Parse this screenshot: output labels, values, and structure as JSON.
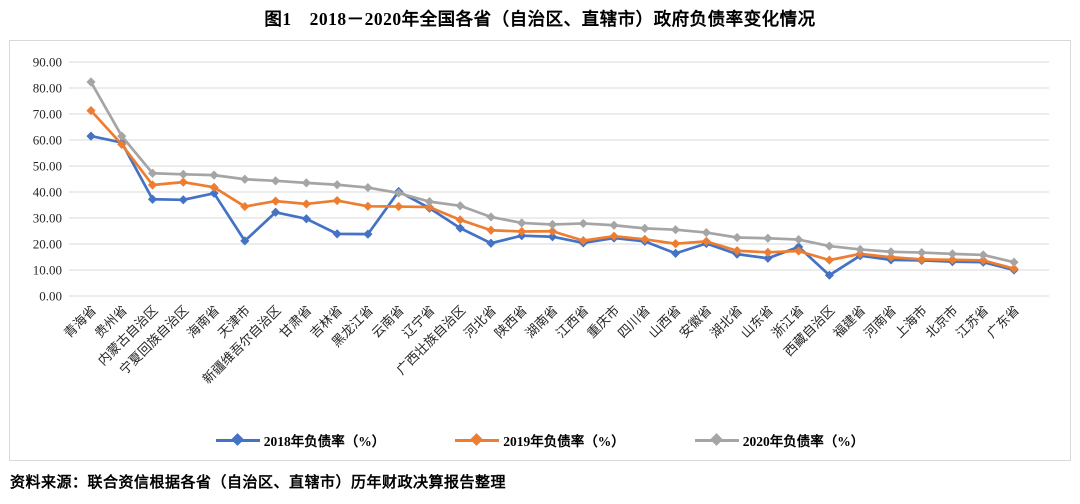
{
  "title": "图1　2018－2020年全国各省（自治区、直辖市）政府负债率变化情况",
  "source": "资料来源：联合资信根据各省（自治区、直辖市）历年财政决算报告整理",
  "colors": {
    "series_2018": "#4472C4",
    "series_2019": "#ED7D31",
    "series_2020": "#A5A5A5",
    "grid": "#D9D9D9",
    "axis_text": "#262626",
    "chart_border": "#D9D9D9"
  },
  "chart_data": {
    "type": "line",
    "title": "图1　2018－2020年全国各省（自治区、直辖市）政府负债率变化情况",
    "xlabel": "",
    "ylabel": "",
    "ylim": [
      0,
      90
    ],
    "ytick_step": 10,
    "ytick_decimals": 2,
    "grid": true,
    "marker": "diamond",
    "legend_position": "bottom",
    "categories": [
      "青海省",
      "贵州省",
      "内蒙古自治区",
      "宁夏回族自治区",
      "海南省",
      "天津市",
      "新疆维吾尔自治区",
      "甘肃省",
      "吉林省",
      "黑龙江省",
      "云南省",
      "辽宁省",
      "广西壮族自治区",
      "河北省",
      "陕西省",
      "湖南省",
      "江西省",
      "重庆市",
      "四川省",
      "山西省",
      "安徽省",
      "湖北省",
      "山东省",
      "浙江省",
      "西藏自治区",
      "福建省",
      "河南省",
      "上海市",
      "北京市",
      "江苏省",
      "广东省"
    ],
    "series": [
      {
        "name": "2018年负债率（%）",
        "color": "#4472C4",
        "values": [
          61.5,
          59.0,
          37.2,
          37.0,
          39.5,
          21.2,
          32.2,
          29.7,
          23.9,
          23.8,
          40.2,
          33.8,
          26.1,
          20.3,
          23.2,
          22.8,
          20.4,
          22.3,
          21.0,
          16.4,
          20.2,
          16.1,
          14.5,
          18.9,
          8.0,
          15.5,
          13.9,
          13.7,
          13.2,
          13.0,
          10.0
        ]
      },
      {
        "name": "2019年负债率（%）",
        "color": "#ED7D31",
        "values": [
          71.3,
          58.3,
          42.7,
          43.8,
          41.8,
          34.4,
          36.5,
          35.4,
          36.7,
          34.5,
          34.4,
          34.2,
          29.3,
          25.3,
          24.8,
          24.9,
          21.3,
          23.0,
          21.8,
          20.1,
          21.0,
          17.4,
          16.8,
          17.3,
          13.8,
          16.2,
          14.9,
          14.1,
          13.9,
          13.7,
          10.5
        ]
      },
      {
        "name": "2020年负债率（%）",
        "color": "#A5A5A5",
        "values": [
          82.3,
          61.5,
          47.2,
          46.8,
          46.5,
          44.9,
          44.3,
          43.5,
          42.8,
          41.7,
          39.6,
          36.3,
          34.7,
          30.4,
          28.1,
          27.5,
          27.9,
          27.2,
          26.0,
          25.5,
          24.4,
          22.5,
          22.2,
          21.7,
          19.2,
          17.9,
          17.0,
          16.7,
          16.2,
          15.8,
          13.0
        ]
      }
    ]
  }
}
